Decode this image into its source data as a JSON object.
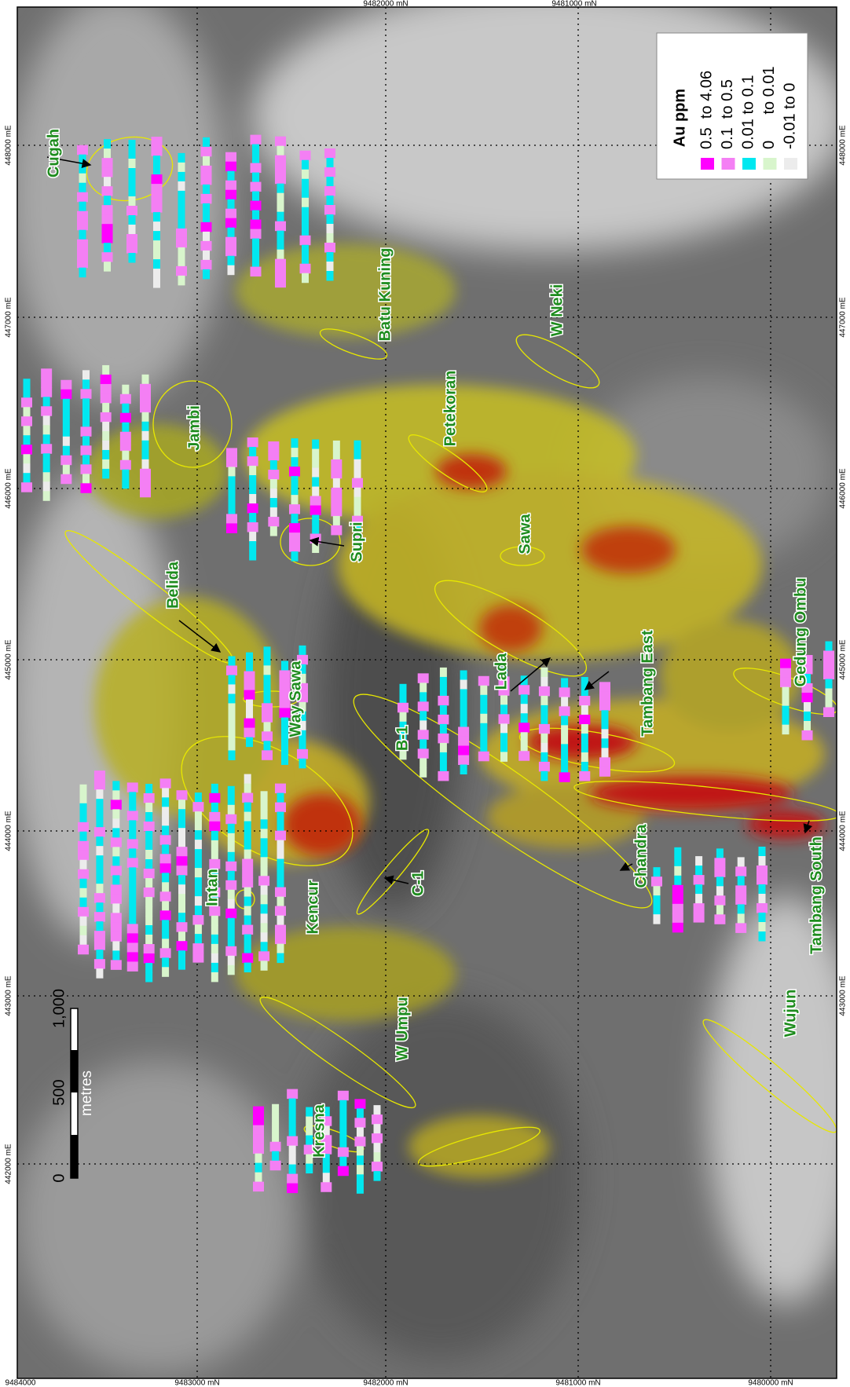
{
  "grid_labels": {
    "top": [
      "9482000 mN",
      "9481000 mN"
    ],
    "left": [
      "448000 mE",
      "447000 mE",
      "446000 mE",
      "445000 mE",
      "444000 mE",
      "443000 mE",
      "442000 mE"
    ],
    "right": [
      "448000 mE",
      "447000 mE",
      "446000 mE",
      "445000 mE",
      "444000 mE",
      "443000 mE"
    ],
    "bottom": [
      "9484000",
      "9483000 mN",
      "9482000 mN",
      "9481000 mN",
      "9480000 mN"
    ]
  },
  "legend": {
    "title": "Au ppm",
    "items": [
      {
        "label": "0.5  to 4.06",
        "color": "#ff00ff"
      },
      {
        "label": "0.1  to 0.5",
        "color": "#f47ff4"
      },
      {
        "label": "0.01 to 0.1",
        "color": "#00e8f0"
      },
      {
        "label": "0      to 0.01",
        "color": "#d8f5cc"
      },
      {
        "label": "-0.01 to 0",
        "color": "#ececec"
      }
    ]
  },
  "scale_bar": {
    "ticks": [
      "0",
      "500",
      "1,000"
    ],
    "unit": "metres"
  },
  "prospects": [
    "Cugah",
    "Jambi",
    "Batu Kuning",
    "W Neki",
    "Petekoran",
    "Supri",
    "Belida",
    "Sawa",
    "Way Sawa",
    "Lada",
    "Tambang East",
    "Gedung Ombu",
    "B-1",
    "Intan",
    "Kencur",
    "C-1",
    "Chandra",
    "Tambang South",
    "Wujun",
    "W Umpu",
    "Kresna"
  ]
}
